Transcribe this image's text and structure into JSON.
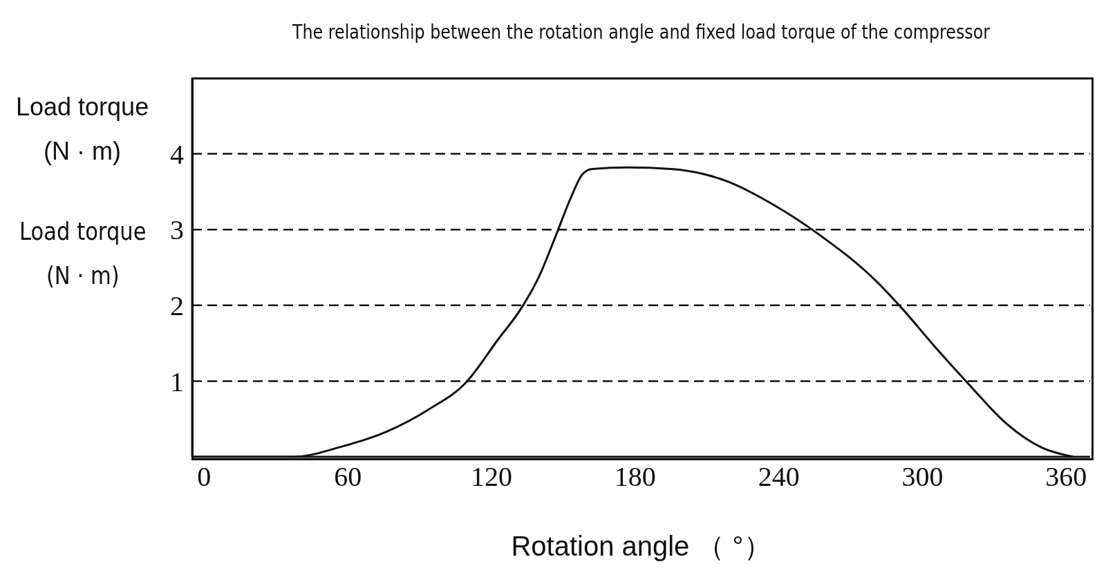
{
  "chart_data": {
    "type": "line",
    "title": "The relationship between the rotation angle and fixed load torque of the compressor",
    "xlabel": "Rotation angle （ °）",
    "ylabel": "Load torque\n(N · m)",
    "annotations": [
      "Load torque\n(N · m)"
    ],
    "x": [
      -5,
      0,
      13,
      37,
      58,
      76,
      94,
      109,
      123,
      132,
      140,
      147,
      153,
      158,
      162,
      177,
      195,
      219,
      236,
      257,
      281,
      292,
      305,
      319,
      335,
      350,
      363
    ],
    "series": [
      {
        "color": "#111111",
        "values": [
          0,
          0,
          0,
          0,
          0.14,
          0.33,
          0.63,
          0.97,
          1.56,
          1.94,
          2.39,
          2.93,
          3.41,
          3.73,
          3.8,
          3.82,
          3.8,
          3.63,
          3.36,
          2.93,
          2.31,
          1.94,
          1.46,
          0.97,
          0.44,
          0.12,
          0
        ]
      }
    ],
    "xlim": [
      -5,
      370
    ],
    "xticks": [
      0,
      60,
      120,
      180,
      240,
      300,
      360
    ],
    "ylim": [
      0,
      5
    ],
    "yticks": [
      1,
      2,
      3,
      4
    ],
    "grid": "y",
    "marker": "none",
    "line_style": "solid"
  }
}
